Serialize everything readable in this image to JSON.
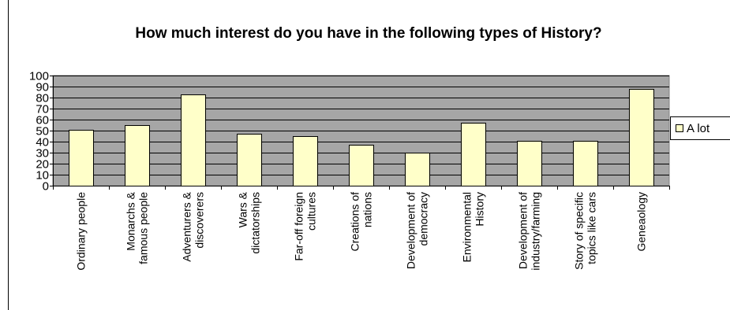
{
  "chart_data": {
    "type": "bar",
    "title": "How much interest do you have in the following types of History?",
    "categories": [
      [
        "Ordinary people"
      ],
      [
        "Monarchs &",
        "famous people"
      ],
      [
        "Adventurers &",
        "discoverers"
      ],
      [
        "Wars &",
        "dictatorships"
      ],
      [
        "Far-off foreign",
        "cultures"
      ],
      [
        "Creations of",
        "nations"
      ],
      [
        "Development of",
        "democracy"
      ],
      [
        "Environmental",
        "History"
      ],
      [
        "Development of",
        "industry/farming"
      ],
      [
        "Story of specific",
        "topics like cars"
      ],
      [
        "Geneaology"
      ]
    ],
    "series": [
      {
        "name": "A lot",
        "values": [
          51,
          55,
          83,
          47,
          45,
          37,
          30,
          57,
          41,
          41,
          88
        ]
      }
    ],
    "ylim": [
      0,
      100
    ],
    "yticks": [
      0,
      10,
      20,
      30,
      40,
      50,
      60,
      70,
      80,
      90,
      100
    ],
    "grid": true,
    "legend_position": "right",
    "colors": {
      "plot_background": "#a6a6a6",
      "bar_fill": "#ffffc9",
      "bar_stroke": "#000000",
      "gridline": "#000000"
    }
  }
}
